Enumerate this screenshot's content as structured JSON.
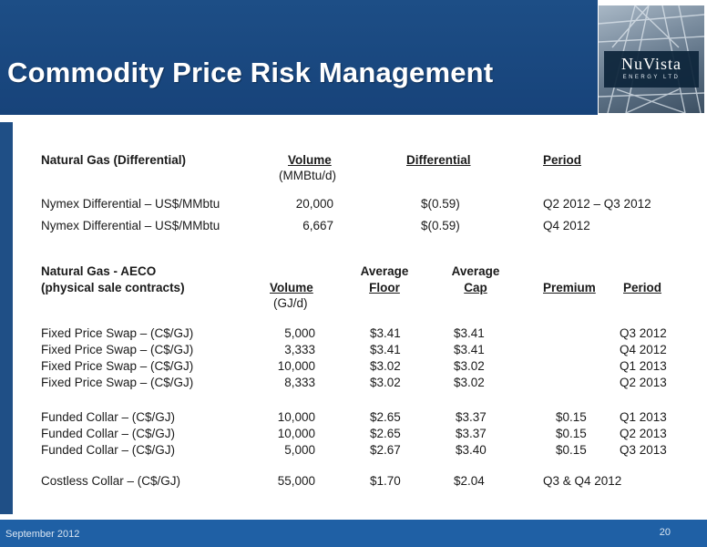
{
  "header": {
    "title": "Commodity Price Risk Management"
  },
  "logo": {
    "name": "NuVista",
    "tagline": "ENERGY LTD"
  },
  "differential_section": {
    "heading": "Natural Gas (Differential)",
    "col_volume": "Volume",
    "col_volume_unit": "(MMBtu/d)",
    "col_differential": "Differential",
    "col_period": "Period",
    "rows": [
      {
        "label": "Nymex Differential – US$/MMbtu",
        "volume": "20,000",
        "differential": "$(0.59)",
        "period": "Q2 2012 – Q3 2012"
      },
      {
        "label": "Nymex Differential – US$/MMbtu",
        "volume": "6,667",
        "differential": "$(0.59)",
        "period": "Q4 2012"
      }
    ]
  },
  "aeco_section": {
    "heading_line1": "Natural Gas - AECO",
    "heading_line2": "(physical sale contracts)",
    "col_volume": "Volume",
    "col_volume_unit": "(GJ/d)",
    "col_floor_line1": "Average",
    "col_floor_line2": "Floor",
    "col_cap_line1": "Average",
    "col_cap_line2": "Cap",
    "col_premium": "Premium",
    "col_period": "Period",
    "swaps": [
      {
        "label": "Fixed Price Swap – (C$/GJ)",
        "volume": "5,000",
        "floor": "$3.41",
        "cap": "$3.41",
        "premium": "",
        "period": "Q3 2012"
      },
      {
        "label": "Fixed Price Swap – (C$/GJ)",
        "volume": "3,333",
        "floor": "$3.41",
        "cap": "$3.41",
        "premium": "",
        "period": "Q4 2012"
      },
      {
        "label": "Fixed Price Swap – (C$/GJ)",
        "volume": "10,000",
        "floor": "$3.02",
        "cap": "$3.02",
        "premium": "",
        "period": "Q1 2013"
      },
      {
        "label": "Fixed Price Swap – (C$/GJ)",
        "volume": "8,333",
        "floor": "$3.02",
        "cap": "$3.02",
        "premium": "",
        "period": "Q2 2013"
      }
    ],
    "collars": [
      {
        "label": "Funded Collar – (C$/GJ)",
        "volume": "10,000",
        "floor": "$2.65",
        "cap": "$3.37",
        "premium": "$0.15",
        "period": "Q1 2013"
      },
      {
        "label": "Funded Collar – (C$/GJ)",
        "volume": "10,000",
        "floor": "$2.65",
        "cap": "$3.37",
        "premium": "$0.15",
        "period": "Q2 2013"
      },
      {
        "label": "Funded Collar – (C$/GJ)",
        "volume": "5,000",
        "floor": "$2.67",
        "cap": "$3.40",
        "premium": "$0.15",
        "period": "Q3 2013"
      }
    ],
    "costless": {
      "label": "Costless Collar – (C$/GJ)",
      "volume": "55,000",
      "floor": "$1.70",
      "cap": "$2.04",
      "period": "Q3 & Q4 2012"
    }
  },
  "footer": {
    "date": "September 2012",
    "page": "20"
  }
}
